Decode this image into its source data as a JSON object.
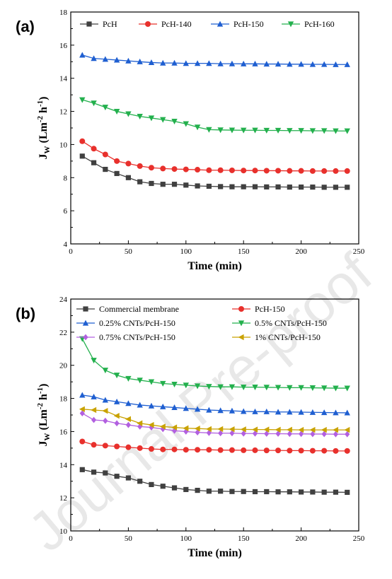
{
  "watermark": "Journal Pre-proof",
  "chart_data": [
    {
      "panel": "(a)",
      "type": "line",
      "xlabel": "Time (min)",
      "ylabel": {
        "main": "J",
        "sub": "W",
        "unit_a": " (Lm",
        "sup1": "-2",
        "unit_b": " h",
        "sup2": "-1",
        "unit_c": ")"
      },
      "xlim": [
        0,
        250
      ],
      "ylim": [
        4,
        18
      ],
      "xticks": [
        0,
        50,
        100,
        150,
        200,
        250
      ],
      "yticks": [
        4,
        6,
        8,
        10,
        12,
        14,
        16,
        18
      ],
      "legend_position": "top",
      "x": [
        10,
        20,
        30,
        40,
        50,
        60,
        70,
        80,
        90,
        100,
        110,
        120,
        130,
        140,
        150,
        160,
        170,
        180,
        190,
        200,
        210,
        220,
        230,
        240
      ],
      "series": [
        {
          "name": "PcH",
          "color": "#404040",
          "marker": "square",
          "values": [
            9.3,
            8.9,
            8.5,
            8.25,
            8.0,
            7.75,
            7.65,
            7.6,
            7.6,
            7.55,
            7.5,
            7.48,
            7.46,
            7.45,
            7.45,
            7.45,
            7.44,
            7.44,
            7.43,
            7.43,
            7.43,
            7.42,
            7.42,
            7.42
          ]
        },
        {
          "name": "PcH-140",
          "color": "#e8302c",
          "marker": "circle",
          "values": [
            10.2,
            9.75,
            9.4,
            9.0,
            8.85,
            8.7,
            8.6,
            8.55,
            8.52,
            8.5,
            8.48,
            8.45,
            8.45,
            8.44,
            8.43,
            8.43,
            8.42,
            8.42,
            8.41,
            8.41,
            8.4,
            8.4,
            8.4,
            8.4
          ]
        },
        {
          "name": "PcH-150",
          "color": "#1f5fd1",
          "marker": "triangle-up",
          "values": [
            15.4,
            15.2,
            15.15,
            15.1,
            15.05,
            15.0,
            14.95,
            14.92,
            14.92,
            14.9,
            14.9,
            14.9,
            14.88,
            14.88,
            14.87,
            14.87,
            14.86,
            14.86,
            14.85,
            14.85,
            14.84,
            14.84,
            14.83,
            14.83
          ]
        },
        {
          "name": "PcH-160",
          "color": "#23b04d",
          "marker": "triangle-down",
          "values": [
            12.7,
            12.5,
            12.25,
            12.0,
            11.85,
            11.7,
            11.6,
            11.5,
            11.4,
            11.25,
            11.05,
            10.9,
            10.88,
            10.87,
            10.86,
            10.86,
            10.85,
            10.85,
            10.84,
            10.84,
            10.83,
            10.83,
            10.82,
            10.82
          ]
        }
      ]
    },
    {
      "panel": "(b)",
      "type": "line",
      "xlabel": "Time (min)",
      "ylabel": {
        "main": "J",
        "sub": "W",
        "unit_a": " (Lm",
        "sup1": "-2",
        "unit_b": " h",
        "sup2": "-1",
        "unit_c": ")"
      },
      "xlim": [
        0,
        250
      ],
      "ylim": [
        10,
        24
      ],
      "xticks": [
        0,
        50,
        100,
        150,
        200,
        250
      ],
      "yticks": [
        10,
        12,
        14,
        16,
        18,
        20,
        22,
        24
      ],
      "legend_position": "top",
      "x": [
        10,
        20,
        30,
        40,
        50,
        60,
        70,
        80,
        90,
        100,
        110,
        120,
        130,
        140,
        150,
        160,
        170,
        180,
        190,
        200,
        210,
        220,
        230,
        240
      ],
      "series": [
        {
          "name": "Commercial membrane",
          "color": "#404040",
          "marker": "square",
          "values": [
            13.7,
            13.55,
            13.5,
            13.3,
            13.2,
            13.0,
            12.8,
            12.7,
            12.6,
            12.5,
            12.45,
            12.4,
            12.4,
            12.38,
            12.38,
            12.37,
            12.37,
            12.36,
            12.36,
            12.35,
            12.35,
            12.34,
            12.34,
            12.33
          ]
        },
        {
          "name": "PcH-150",
          "color": "#e8302c",
          "marker": "circle",
          "values": [
            15.4,
            15.2,
            15.15,
            15.1,
            15.05,
            15.0,
            14.95,
            14.92,
            14.92,
            14.9,
            14.9,
            14.9,
            14.88,
            14.88,
            14.87,
            14.87,
            14.86,
            14.86,
            14.85,
            14.85,
            14.84,
            14.84,
            14.83,
            14.83
          ]
        },
        {
          "name": "0.25% CNTs/PcH-150",
          "color": "#1f5fd1",
          "marker": "triangle-up",
          "values": [
            18.2,
            18.1,
            17.9,
            17.8,
            17.7,
            17.6,
            17.55,
            17.5,
            17.45,
            17.4,
            17.35,
            17.3,
            17.27,
            17.25,
            17.22,
            17.2,
            17.2,
            17.18,
            17.18,
            17.17,
            17.16,
            17.15,
            17.14,
            17.13
          ]
        },
        {
          "name": "0.5% CNTs/PcH-150",
          "color": "#23b04d",
          "marker": "triangle-down",
          "values": [
            21.6,
            20.3,
            19.7,
            19.4,
            19.2,
            19.1,
            19.0,
            18.9,
            18.85,
            18.8,
            18.75,
            18.72,
            18.7,
            18.7,
            18.68,
            18.68,
            18.67,
            18.66,
            18.65,
            18.65,
            18.64,
            18.63,
            18.62,
            18.62
          ]
        },
        {
          "name": "0.75% CNTs/PcH-150",
          "color": "#b260e0",
          "marker": "diamond",
          "values": [
            17.1,
            16.7,
            16.65,
            16.5,
            16.4,
            16.3,
            16.25,
            16.15,
            16.05,
            16.0,
            15.95,
            15.92,
            15.9,
            15.9,
            15.88,
            15.88,
            15.87,
            15.87,
            15.86,
            15.86,
            15.85,
            15.85,
            15.84,
            15.84
          ]
        },
        {
          "name": "1% CNTs/PcH-150",
          "color": "#c9a200",
          "marker": "triangle-left",
          "values": [
            17.35,
            17.3,
            17.25,
            16.95,
            16.75,
            16.5,
            16.4,
            16.3,
            16.25,
            16.2,
            16.18,
            16.15,
            16.15,
            16.14,
            16.13,
            16.12,
            16.12,
            16.11,
            16.11,
            16.1,
            16.1,
            16.1,
            16.1,
            16.1
          ]
        }
      ]
    }
  ]
}
